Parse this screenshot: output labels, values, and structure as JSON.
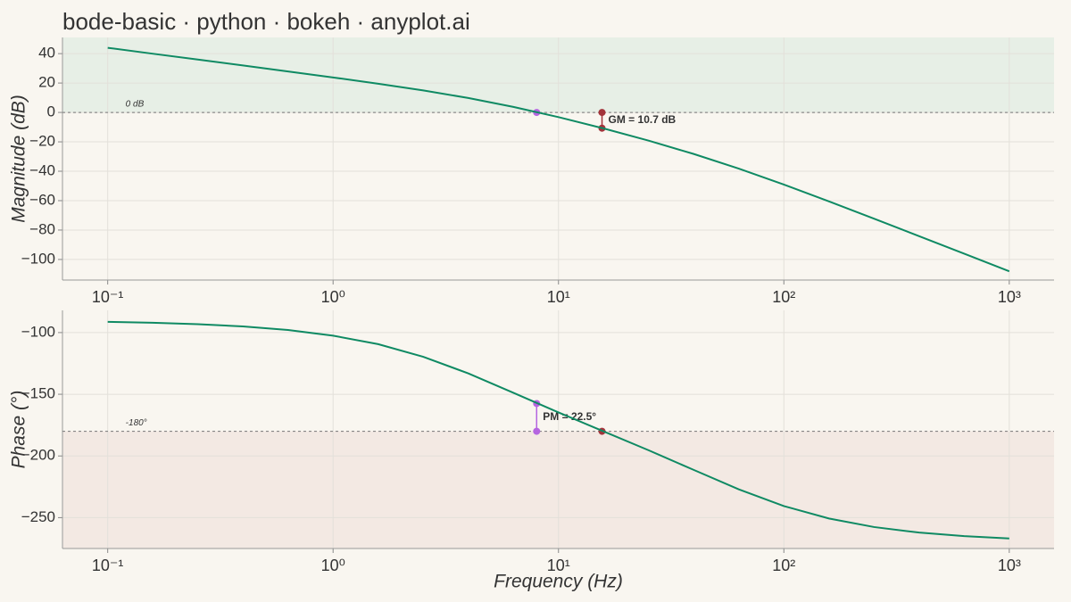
{
  "chart_data": [
    {
      "type": "line",
      "title": "bode-basic · python · bokeh · anyplot.ai",
      "ylabel": "Magnitude (dB)",
      "xscale": "log",
      "xlim": [
        0.063,
        1580
      ],
      "ylim": [
        -114,
        51
      ],
      "xticks": [
        {
          "value": 0.1,
          "label": "10⁻¹"
        },
        {
          "value": 1,
          "label": "10⁰"
        },
        {
          "value": 10,
          "label": "10¹"
        },
        {
          "value": 100,
          "label": "10²"
        },
        {
          "value": 1000,
          "label": "10³"
        }
      ],
      "yticks": [
        40,
        20,
        0,
        {
          "value": -20,
          "label": "−20"
        },
        {
          "value": -40,
          "label": "−40"
        },
        {
          "value": -60,
          "label": "−60"
        },
        {
          "value": -80,
          "label": "−80"
        },
        {
          "value": -100,
          "label": "−100"
        }
      ],
      "grid": true,
      "x": [
        0.1,
        0.158,
        0.251,
        0.398,
        0.631,
        1,
        1.585,
        2.512,
        3.981,
        6.31,
        10,
        15.85,
        25.12,
        39.81,
        63.1,
        100,
        158.5,
        251.2,
        398.1,
        631,
        1000
      ],
      "series": [
        {
          "color": "#0f8a63",
          "values": [
            43.97,
            39.97,
            35.96,
            31.94,
            27.9,
            23.8,
            19.55,
            14.98,
            9.81,
            3.76,
            -3.19,
            -10.88,
            -19.2,
            -28.25,
            -38.22,
            -49.05,
            -60.48,
            -72.24,
            -84.14,
            -96.1,
            -108.08
          ]
        }
      ],
      "reference": {
        "value": 0,
        "label": "0 dB",
        "shade": "above",
        "shade_color": "#e7efe6"
      },
      "points": [
        {
          "x": 8.0,
          "y": 0,
          "color": "#b565e0"
        }
      ],
      "annotations": [
        {
          "text": "GM = 10.7 dB",
          "x": 15.6,
          "y1": 0,
          "y2": -10.7,
          "color": "#a3333a"
        }
      ]
    },
    {
      "type": "line",
      "ylabel": "Phase (°)",
      "xlabel": "Frequency (Hz)",
      "xscale": "log",
      "xlim": [
        0.063,
        1580
      ],
      "ylim": [
        -275,
        -82
      ],
      "xticks": [
        {
          "value": 0.1,
          "label": "10⁻¹"
        },
        {
          "value": 1,
          "label": "10⁰"
        },
        {
          "value": 10,
          "label": "10¹"
        },
        {
          "value": 100,
          "label": "10²"
        },
        {
          "value": 1000,
          "label": "10³"
        }
      ],
      "yticks": [
        {
          "value": -100,
          "label": "−100"
        },
        {
          "value": -150,
          "label": "−150"
        },
        {
          "value": -200,
          "label": "−200"
        },
        {
          "value": -250,
          "label": "−250"
        }
      ],
      "grid": true,
      "x": [
        0.1,
        0.158,
        0.251,
        0.398,
        0.631,
        1,
        1.585,
        2.512,
        3.981,
        6.31,
        10,
        15.85,
        25.12,
        39.81,
        63.1,
        100,
        158.5,
        251.2,
        398.1,
        631,
        1000
      ],
      "series": [
        {
          "color": "#0f8a63",
          "values": [
            -91.3,
            -92.0,
            -93.2,
            -95.0,
            -97.9,
            -102.5,
            -109.4,
            -119.6,
            -133.1,
            -148.8,
            -164.7,
            -180.1,
            -195.4,
            -211.3,
            -227.1,
            -240.6,
            -250.7,
            -257.6,
            -262.1,
            -265.0,
            -266.9
          ]
        }
      ],
      "reference": {
        "value": -180,
        "label": "-180°",
        "shade": "below",
        "shade_color": "#f3e9e3"
      },
      "points": [
        {
          "x": 15.6,
          "y": -180,
          "color": "#a3333a"
        }
      ],
      "annotations": [
        {
          "text": "PM = 22.5°",
          "x": 8.0,
          "y1": -180,
          "y2": -157.5,
          "color": "#b565e0"
        }
      ]
    }
  ]
}
